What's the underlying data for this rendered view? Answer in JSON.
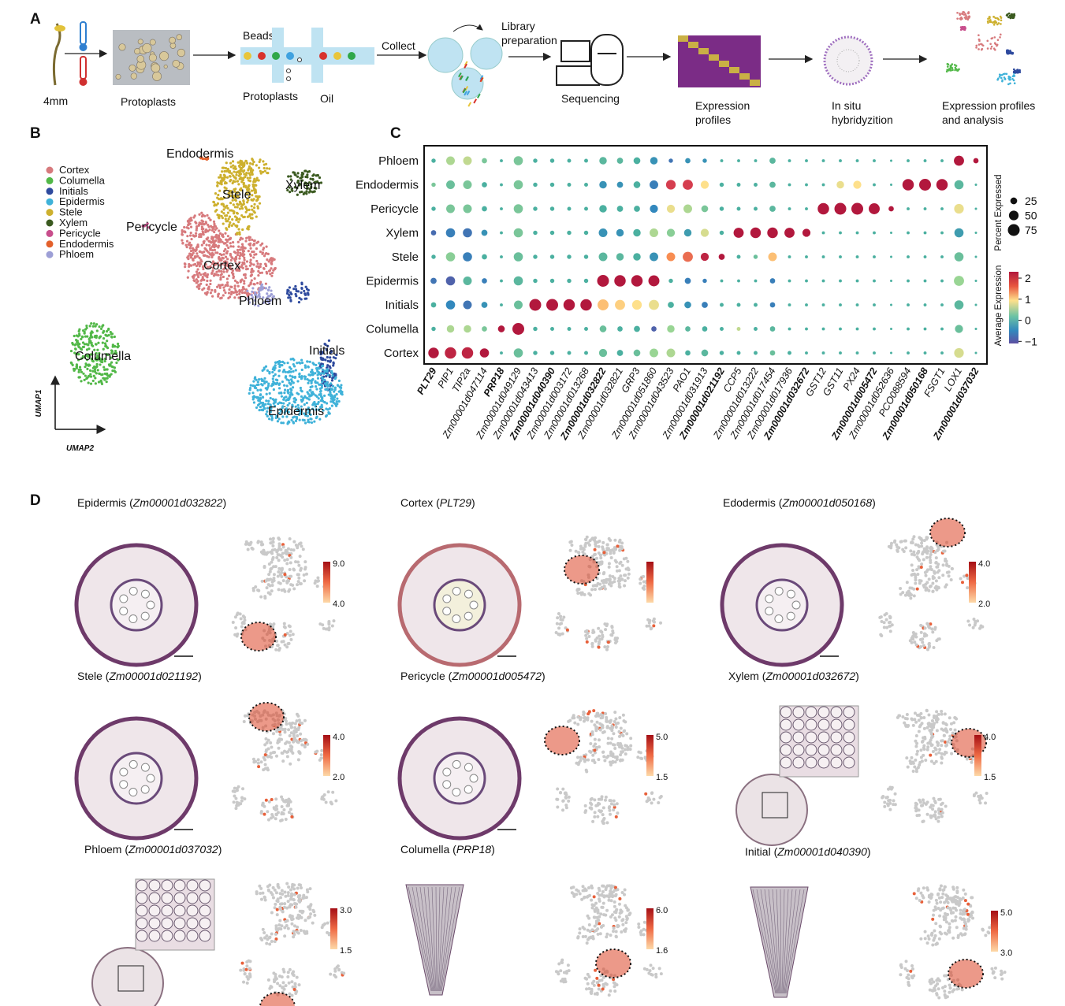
{
  "panel_a": {
    "letter": "A",
    "labels": [
      {
        "lines": [
          "4mm"
        ]
      },
      {
        "lines": [
          "Protoplasts"
        ]
      },
      {
        "lines": [
          "Beads"
        ]
      },
      {
        "lines": [
          "Protoplasts"
        ]
      },
      {
        "lines": [
          "Oil"
        ]
      },
      {
        "lines": [
          "Collect"
        ]
      },
      {
        "lines": [
          "Library",
          "preparation"
        ]
      },
      {
        "lines": [
          "Sequencing"
        ]
      },
      {
        "lines": [
          "Expression",
          "profiles"
        ]
      },
      {
        "lines": [
          "In situ",
          "hybridyzition"
        ]
      },
      {
        "lines": [
          "Expression profiles",
          "and analysis"
        ]
      }
    ]
  },
  "panel_b": {
    "letter": "B",
    "legend": [
      {
        "name": "Cortex",
        "color": "#d77a7d"
      },
      {
        "name": "Columella",
        "color": "#52b848"
      },
      {
        "name": "Initials",
        "color": "#2e4a9e"
      },
      {
        "name": "Epidermis",
        "color": "#3fb2d9"
      },
      {
        "name": "Stele",
        "color": "#cdb02e"
      },
      {
        "name": "Xylem",
        "color": "#3b5a20"
      },
      {
        "name": "Pericycle",
        "color": "#c84e8c"
      },
      {
        "name": "Endodermis",
        "color": "#e3602b"
      },
      {
        "name": "Phloem",
        "color": "#9d9fd6"
      }
    ],
    "cluster_labels": [
      "Endodermis",
      "Stele",
      "Xylem",
      "Pericycle",
      "Cortex",
      "Phloem",
      "Columella",
      "Initials",
      "Epidermis"
    ],
    "axes": [
      "UMAP1",
      "UMAP2"
    ]
  },
  "panel_c": {
    "letter": "C",
    "genes": [
      {
        "name": "PLT29",
        "bold": true
      },
      {
        "name": "PIP1",
        "bold": false
      },
      {
        "name": "TIP2a",
        "bold": false
      },
      {
        "name": "Zm00001d047114",
        "bold": false
      },
      {
        "name": "PRP18",
        "bold": true
      },
      {
        "name": "Zm00001d049129",
        "bold": false
      },
      {
        "name": "Zm00001d043413",
        "bold": false
      },
      {
        "name": "Zm00001d040390",
        "bold": true
      },
      {
        "name": "Zm00001d003172",
        "bold": false
      },
      {
        "name": "Zm00001d013268",
        "bold": false
      },
      {
        "name": "Zm00001d032822",
        "bold": true
      },
      {
        "name": "Zm00001d032821",
        "bold": false
      },
      {
        "name": "GRP3",
        "bold": false
      },
      {
        "name": "Zm00001d051860",
        "bold": false
      },
      {
        "name": "Zm00001d043523",
        "bold": false
      },
      {
        "name": "PAO1",
        "bold": false
      },
      {
        "name": "Zm00001d031913",
        "bold": false
      },
      {
        "name": "Zm00001d021192",
        "bold": true
      },
      {
        "name": "CCP5",
        "bold": false
      },
      {
        "name": "Zm00001d013222",
        "bold": false
      },
      {
        "name": "Zm00001d017454",
        "bold": false
      },
      {
        "name": "Zm00001d017936",
        "bold": false
      },
      {
        "name": "Zm00001d032672",
        "bold": true
      },
      {
        "name": "GST12",
        "bold": false
      },
      {
        "name": "GST11",
        "bold": false
      },
      {
        "name": "PX24",
        "bold": false
      },
      {
        "name": "Zm00001d005472",
        "bold": true
      },
      {
        "name": "Zm00001d052636",
        "bold": false
      },
      {
        "name": "PCO088594",
        "bold": false
      },
      {
        "name": "Zm00001d050168",
        "bold": true
      },
      {
        "name": "FSGT1",
        "bold": false
      },
      {
        "name": "LOX1",
        "bold": false
      },
      {
        "name": "Zm00001d037032",
        "bold": true
      }
    ],
    "rows": [
      {
        "name": "Phloem",
        "expression": [
          0,
          0.6,
          0.7,
          0.3,
          0,
          0.3,
          0,
          0,
          0,
          0,
          0.1,
          0.1,
          0,
          -0.3,
          -0.6,
          -0.3,
          -0.3,
          0,
          0,
          0,
          0.1,
          0,
          0,
          0,
          0,
          0,
          0,
          0,
          0,
          0,
          0,
          2.3,
          2.3
        ],
        "percent": [
          10,
          40,
          40,
          15,
          5,
          45,
          10,
          10,
          8,
          8,
          30,
          20,
          25,
          30,
          10,
          15,
          10,
          5,
          5,
          5,
          20,
          5,
          5,
          5,
          5,
          5,
          5,
          3,
          5,
          5,
          5,
          55,
          15
        ]
      },
      {
        "name": "Endodermis",
        "expression": [
          0.3,
          0.2,
          0.3,
          0,
          0,
          0.3,
          0,
          0,
          0,
          0,
          -0.3,
          -0.3,
          0,
          -0.5,
          2.0,
          2.0,
          1.0,
          0,
          0,
          0,
          0.1,
          0,
          0,
          0,
          0.9,
          1.0,
          0,
          0,
          2.3,
          2.3,
          2.3,
          0.1,
          0
        ],
        "percent": [
          10,
          40,
          40,
          15,
          5,
          45,
          10,
          10,
          8,
          8,
          30,
          20,
          25,
          40,
          50,
          55,
          35,
          10,
          8,
          8,
          20,
          5,
          5,
          5,
          30,
          35,
          5,
          3,
          70,
          75,
          70,
          45,
          3
        ]
      },
      {
        "name": "Pericycle",
        "expression": [
          0,
          0.3,
          0.3,
          0,
          0,
          0.3,
          0,
          0,
          0,
          0,
          0,
          0,
          0,
          -0.4,
          0.9,
          0.6,
          0.3,
          0,
          0,
          0,
          0.1,
          0,
          0,
          2.3,
          2.3,
          2.3,
          2.3,
          2.3,
          0,
          0,
          0,
          0.9,
          0
        ],
        "percent": [
          10,
          40,
          40,
          15,
          5,
          45,
          10,
          10,
          8,
          8,
          30,
          20,
          20,
          35,
          35,
          40,
          25,
          10,
          8,
          8,
          20,
          5,
          5,
          70,
          75,
          75,
          65,
          15,
          5,
          5,
          5,
          50,
          3
        ]
      },
      {
        "name": "Xylem",
        "expression": [
          -0.7,
          -0.5,
          -0.6,
          -0.3,
          0,
          0.3,
          0,
          0,
          0,
          0,
          -0.3,
          -0.3,
          0,
          0.6,
          0.4,
          -0.2,
          0.8,
          0,
          2.3,
          2.3,
          2.3,
          2.3,
          2.3,
          0,
          0,
          0,
          0,
          0,
          0,
          0,
          0,
          -0.2,
          0
        ],
        "percent": [
          15,
          45,
          45,
          20,
          5,
          45,
          10,
          10,
          10,
          10,
          40,
          30,
          30,
          40,
          35,
          30,
          35,
          10,
          55,
          60,
          60,
          55,
          35,
          5,
          5,
          5,
          5,
          3,
          5,
          5,
          5,
          45,
          3
        ]
      },
      {
        "name": "Stele",
        "expression": [
          0,
          0.4,
          -0.5,
          0,
          0,
          0.2,
          0,
          0,
          0,
          0,
          0.1,
          0.1,
          0,
          -0.3,
          1.5,
          1.7,
          2.2,
          2.3,
          0,
          0.2,
          1.2,
          0,
          0,
          0,
          0,
          0,
          0,
          0,
          0,
          0,
          0,
          0.2,
          0
        ],
        "percent": [
          10,
          45,
          45,
          15,
          5,
          45,
          10,
          10,
          10,
          10,
          40,
          30,
          30,
          40,
          40,
          55,
          35,
          20,
          8,
          10,
          40,
          5,
          5,
          5,
          5,
          5,
          5,
          3,
          5,
          5,
          5,
          45,
          3
        ]
      },
      {
        "name": "Epidermis",
        "expression": [
          -0.6,
          -0.8,
          0.1,
          -0.5,
          0,
          0.1,
          0,
          0,
          0,
          0,
          2.3,
          2.3,
          2.3,
          2.3,
          0,
          -0.5,
          -0.5,
          0,
          0,
          0,
          -0.5,
          0,
          0,
          0,
          0,
          0,
          0,
          0,
          0,
          0,
          0,
          0.5,
          0
        ],
        "percent": [
          20,
          45,
          40,
          15,
          5,
          45,
          10,
          10,
          10,
          10,
          75,
          70,
          70,
          65,
          10,
          20,
          10,
          5,
          5,
          5,
          15,
          5,
          5,
          5,
          5,
          5,
          5,
          3,
          5,
          5,
          5,
          55,
          3
        ]
      },
      {
        "name": "Initials",
        "expression": [
          0,
          -0.4,
          -0.6,
          -0.3,
          0,
          0.2,
          2.3,
          2.3,
          2.3,
          2.3,
          1.2,
          1.1,
          1.0,
          0.9,
          0,
          -0.3,
          -0.5,
          0,
          0,
          0,
          -0.5,
          0,
          0,
          0,
          0,
          0,
          0,
          0,
          0,
          0,
          0,
          0.1,
          0
        ],
        "percent": [
          15,
          45,
          40,
          20,
          5,
          40,
          75,
          75,
          70,
          70,
          65,
          55,
          50,
          55,
          20,
          25,
          20,
          8,
          8,
          8,
          15,
          5,
          5,
          5,
          5,
          5,
          5,
          3,
          5,
          5,
          5,
          45,
          3
        ]
      },
      {
        "name": "Columella",
        "expression": [
          0,
          0.6,
          0.6,
          0.3,
          2.3,
          2.3,
          0,
          0,
          0,
          0,
          0.2,
          0,
          0,
          -0.8,
          0.5,
          0.1,
          0,
          0,
          0.7,
          0,
          0.1,
          0,
          0,
          0,
          0,
          0,
          0,
          0,
          0,
          0,
          0,
          0.2,
          0
        ],
        "percent": [
          10,
          30,
          30,
          15,
          25,
          75,
          10,
          8,
          8,
          8,
          25,
          15,
          20,
          15,
          30,
          15,
          15,
          8,
          8,
          8,
          15,
          5,
          5,
          5,
          5,
          5,
          5,
          3,
          5,
          5,
          5,
          35,
          3
        ]
      },
      {
        "name": "Cortex",
        "expression": [
          2.3,
          2.2,
          2.2,
          2.3,
          0,
          0.2,
          0,
          0,
          0,
          0,
          0.2,
          0,
          0.2,
          0.5,
          0.6,
          0,
          0.1,
          0,
          0,
          0,
          0.2,
          0,
          0,
          0,
          0,
          0,
          0,
          0,
          0,
          0,
          0,
          0.8,
          0
        ],
        "percent": [
          60,
          70,
          70,
          45,
          5,
          45,
          10,
          10,
          8,
          8,
          35,
          20,
          25,
          40,
          40,
          15,
          25,
          10,
          8,
          8,
          15,
          8,
          5,
          5,
          5,
          5,
          5,
          3,
          5,
          5,
          5,
          50,
          3
        ]
      }
    ],
    "size_title": "Percent Expressed",
    "size_ticks": [
      25,
      50,
      75
    ],
    "color_title": "Average Expression",
    "color_ticks": [
      2,
      1,
      0,
      {
        "value": -1,
        "label": "−1"
      }
    ]
  },
  "panel_d": {
    "letter": "D",
    "panels": [
      {
        "title": [
          "Epidermis (",
          "Zm00001d032822",
          ")"
        ],
        "scale": [
          "9.0",
          "4.0"
        ]
      },
      {
        "title": [
          "Cortex (",
          "PLT29",
          ")"
        ],
        "scale": []
      },
      {
        "title": [
          "Edodermis (",
          "Zm00001d050168",
          ")"
        ],
        "scale": [
          "4.0",
          "2.0"
        ]
      },
      {
        "title": [
          "Stele (",
          "Zm00001d021192",
          ")"
        ],
        "scale": [
          "4.0",
          "2.0"
        ]
      },
      {
        "title": [
          "Pericycle (",
          "Zm00001d005472",
          ")"
        ],
        "scale": [
          "5.0",
          "1.5"
        ]
      },
      {
        "title": [
          "Xylem (",
          "Zm00001d032672",
          ")"
        ],
        "scale": [
          "4.0",
          "1.5"
        ]
      },
      {
        "title": [
          "Phloem (",
          "Zm00001d037032",
          ")"
        ],
        "scale": [
          "3.0",
          "1.5"
        ]
      },
      {
        "title": [
          "Columella (",
          "PRP18",
          ")"
        ],
        "scale": [
          "6.0",
          "1.6"
        ]
      },
      {
        "title": [
          "Initial (",
          "Zm00001d040390",
          ")"
        ],
        "scale": [
          "5.0",
          "3.0"
        ]
      }
    ]
  }
}
